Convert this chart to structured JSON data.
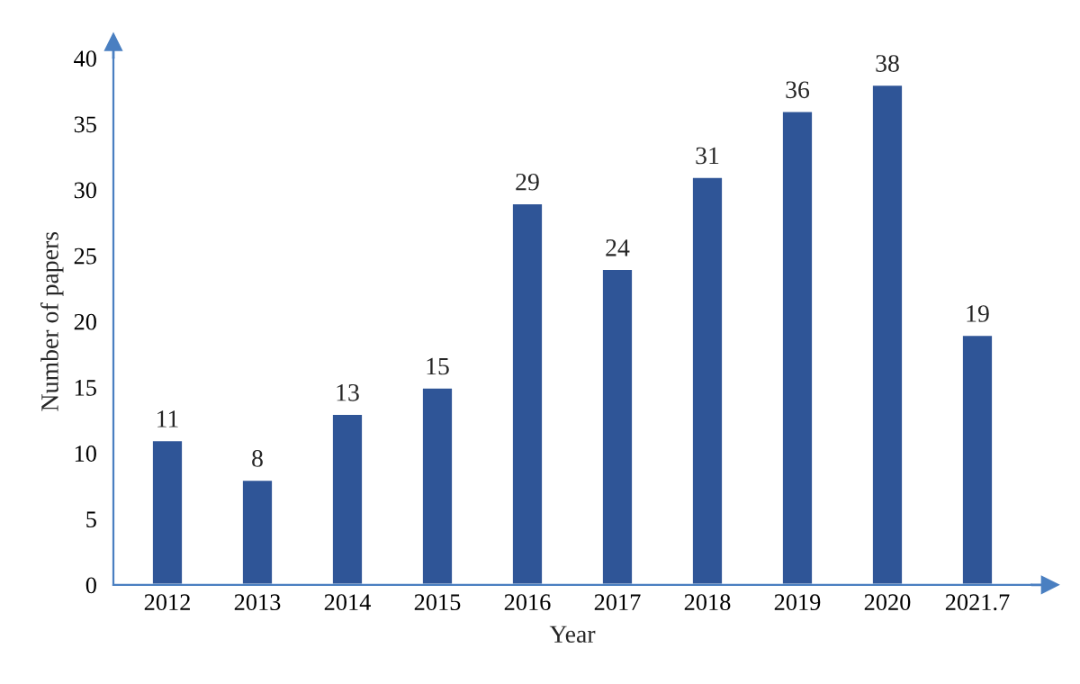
{
  "chart_data": {
    "type": "bar",
    "xlabel": "Year",
    "ylabel": "Number of papers",
    "categories": [
      "2012",
      "2013",
      "2014",
      "2015",
      "2016",
      "2017",
      "2018",
      "2019",
      "2020",
      "2021.7"
    ],
    "values": [
      11,
      8,
      13,
      15,
      29,
      24,
      31,
      36,
      38,
      19
    ],
    "color": "#2f5597",
    "ylim": [
      0,
      40
    ],
    "yticks": [
      0,
      5,
      10,
      15,
      20,
      25,
      30,
      35,
      40
    ],
    "data_labels": true,
    "grid": false,
    "legend": false
  }
}
